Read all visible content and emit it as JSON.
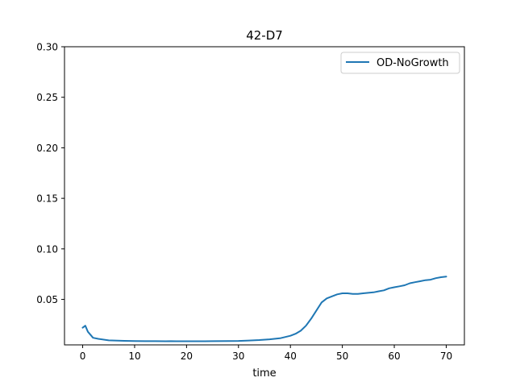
{
  "chart_data": {
    "type": "line",
    "title": "42-D7",
    "xlabel": "time",
    "ylabel": "",
    "xlim": [
      -3.5,
      73.5
    ],
    "ylim": [
      0.005,
      0.3
    ],
    "xticks": [
      0,
      10,
      20,
      30,
      40,
      50,
      60,
      70
    ],
    "yticks": [
      0.05,
      0.1,
      0.15,
      0.2,
      0.25,
      0.3
    ],
    "ytick_labels": [
      "0.05",
      "0.10",
      "0.15",
      "0.20",
      "0.25",
      "0.30"
    ],
    "grid": false,
    "legend": {
      "position": "top-right"
    },
    "series": [
      {
        "name": "OD-NoGrowth",
        "color": "#1f77b4",
        "x": [
          0,
          0.5,
          1,
          2,
          3,
          5,
          8,
          10,
          12,
          14,
          16,
          17,
          18,
          20,
          22,
          25,
          28,
          30,
          32,
          34,
          36,
          38,
          40,
          41,
          42,
          43,
          44,
          45,
          46,
          47,
          48,
          49,
          50,
          51,
          52,
          53,
          54,
          55,
          56,
          57,
          58,
          59,
          60,
          61,
          62,
          63,
          64,
          65,
          66,
          67,
          68,
          69,
          70
        ],
        "y": [
          0.022,
          0.024,
          0.018,
          0.012,
          0.011,
          0.0095,
          0.009,
          0.0088,
          0.0087,
          0.0087,
          0.0086,
          0.0087,
          0.0086,
          0.0086,
          0.0086,
          0.0087,
          0.0088,
          0.0089,
          0.0093,
          0.0098,
          0.0105,
          0.0115,
          0.014,
          0.016,
          0.019,
          0.024,
          0.031,
          0.039,
          0.047,
          0.051,
          0.053,
          0.055,
          0.056,
          0.056,
          0.0555,
          0.0555,
          0.056,
          0.0565,
          0.057,
          0.058,
          0.059,
          0.061,
          0.062,
          0.063,
          0.064,
          0.066,
          0.067,
          0.068,
          0.069,
          0.0695,
          0.071,
          0.072,
          0.0725
        ]
      }
    ]
  }
}
